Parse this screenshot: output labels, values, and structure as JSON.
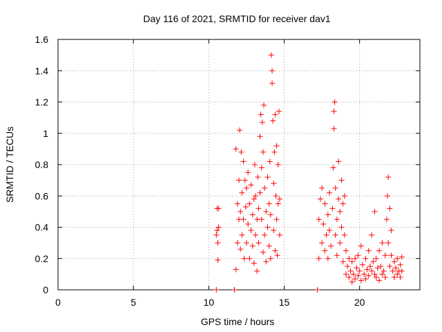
{
  "chart_data": {
    "type": "scatter",
    "title": "Day 116 of 2021, SRMTID for receiver dav1",
    "xlabel": "GPS time / hours",
    "ylabel": "SRMTID / TECUs",
    "xlim": [
      0,
      24
    ],
    "ylim": [
      0,
      1.6
    ],
    "xticks": [
      0,
      5,
      10,
      15,
      20
    ],
    "yticks": [
      0,
      0.2,
      0.4,
      0.6,
      0.8,
      1.0,
      1.2,
      1.4,
      1.6
    ],
    "xtick_labels": [
      "0",
      "5",
      "10",
      "15",
      "20"
    ],
    "ytick_labels": [
      "0",
      "0.2",
      "0.4",
      "0.6",
      "0.8",
      "1",
      "1.2",
      "1.4",
      "1.6"
    ],
    "grid": true,
    "marker": "+",
    "color": "#ff0000",
    "series": [
      {
        "name": "SRMTID",
        "points": [
          [
            10.5,
            0.0
          ],
          [
            10.5,
            0.35
          ],
          [
            10.55,
            0.38
          ],
          [
            10.55,
            0.52
          ],
          [
            10.6,
            0.3
          ],
          [
            10.6,
            0.19
          ],
          [
            10.65,
            0.52
          ],
          [
            10.65,
            0.4
          ],
          [
            11.7,
            0.0
          ],
          [
            11.7,
            0.0
          ],
          [
            11.8,
            0.13
          ],
          [
            11.8,
            0.9
          ],
          [
            11.9,
            0.3
          ],
          [
            11.9,
            0.55
          ],
          [
            12.0,
            0.45
          ],
          [
            12.0,
            0.7
          ],
          [
            12.05,
            1.02
          ],
          [
            12.1,
            0.26
          ],
          [
            12.1,
            0.5
          ],
          [
            12.15,
            0.88
          ],
          [
            12.2,
            0.35
          ],
          [
            12.2,
            0.62
          ],
          [
            12.3,
            0.45
          ],
          [
            12.3,
            0.82
          ],
          [
            12.35,
            0.2
          ],
          [
            12.4,
            0.7
          ],
          [
            12.45,
            0.53
          ],
          [
            12.5,
            0.3
          ],
          [
            12.5,
            0.65
          ],
          [
            12.6,
            0.42
          ],
          [
            12.6,
            0.75
          ],
          [
            12.7,
            0.2
          ],
          [
            12.7,
            0.55
          ],
          [
            12.8,
            0.38
          ],
          [
            12.8,
            0.67
          ],
          [
            12.9,
            0.28
          ],
          [
            12.9,
            0.48
          ],
          [
            13.0,
            0.17
          ],
          [
            13.0,
            0.58
          ],
          [
            13.05,
            0.8
          ],
          [
            13.1,
            0.35
          ],
          [
            13.1,
            0.6
          ],
          [
            13.2,
            0.12
          ],
          [
            13.2,
            0.45
          ],
          [
            13.25,
            0.72
          ],
          [
            13.3,
            0.3
          ],
          [
            13.3,
            0.52
          ],
          [
            13.4,
            0.98
          ],
          [
            13.4,
            0.62
          ],
          [
            13.45,
            1.12
          ],
          [
            13.5,
            0.45
          ],
          [
            13.5,
            0.78
          ],
          [
            13.55,
            1.07
          ],
          [
            13.6,
            0.24
          ],
          [
            13.6,
            0.88
          ],
          [
            13.65,
            1.18
          ],
          [
            13.7,
            0.35
          ],
          [
            13.7,
            0.65
          ],
          [
            13.8,
            0.18
          ],
          [
            13.8,
            0.5
          ],
          [
            13.9,
            0.4
          ],
          [
            13.9,
            0.72
          ],
          [
            14.0,
            0.28
          ],
          [
            14.0,
            0.55
          ],
          [
            14.05,
            0.82
          ],
          [
            14.1,
            0.2
          ],
          [
            14.1,
            0.48
          ],
          [
            14.15,
            1.5
          ],
          [
            14.2,
            1.4
          ],
          [
            14.2,
            1.32
          ],
          [
            14.25,
            1.08
          ],
          [
            14.3,
            0.38
          ],
          [
            14.3,
            0.68
          ],
          [
            14.35,
            0.88
          ],
          [
            14.4,
            1.12
          ],
          [
            14.4,
            0.25
          ],
          [
            14.45,
            0.6
          ],
          [
            14.5,
            0.45
          ],
          [
            14.5,
            0.92
          ],
          [
            14.55,
            0.22
          ],
          [
            14.6,
            0.55
          ],
          [
            14.6,
            0.8
          ],
          [
            14.65,
            1.14
          ],
          [
            14.7,
            0.35
          ],
          [
            14.7,
            0.58
          ],
          [
            17.2,
            0.0
          ],
          [
            17.3,
            0.2
          ],
          [
            17.3,
            0.45
          ],
          [
            17.4,
            0.58
          ],
          [
            17.5,
            0.3
          ],
          [
            17.5,
            0.65
          ],
          [
            17.6,
            0.42
          ],
          [
            17.7,
            0.25
          ],
          [
            17.7,
            0.55
          ],
          [
            17.8,
            0.35
          ],
          [
            17.9,
            0.48
          ],
          [
            17.9,
            0.2
          ],
          [
            18.0,
            0.38
          ],
          [
            18.0,
            0.62
          ],
          [
            18.1,
            0.28
          ],
          [
            18.2,
            0.52
          ],
          [
            18.25,
            0.78
          ],
          [
            18.3,
            1.03
          ],
          [
            18.3,
            1.14
          ],
          [
            18.35,
            1.2
          ],
          [
            18.4,
            0.35
          ],
          [
            18.4,
            0.65
          ],
          [
            18.5,
            0.45
          ],
          [
            18.5,
            0.22
          ],
          [
            18.6,
            0.58
          ],
          [
            18.6,
            0.82
          ],
          [
            18.7,
            0.3
          ],
          [
            18.7,
            0.5
          ],
          [
            18.8,
            0.4
          ],
          [
            18.8,
            0.7
          ],
          [
            18.9,
            0.18
          ],
          [
            18.9,
            0.55
          ],
          [
            19.0,
            0.35
          ],
          [
            19.0,
            0.6
          ],
          [
            19.1,
            0.1
          ],
          [
            19.1,
            0.25
          ],
          [
            19.2,
            0.15
          ],
          [
            19.3,
            0.08
          ],
          [
            19.3,
            0.2
          ],
          [
            19.4,
            0.12
          ],
          [
            19.5,
            0.05
          ],
          [
            19.5,
            0.18
          ],
          [
            19.6,
            0.1
          ],
          [
            19.7,
            0.2
          ],
          [
            19.7,
            0.07
          ],
          [
            19.8,
            0.14
          ],
          [
            19.9,
            0.22
          ],
          [
            19.9,
            0.09
          ],
          [
            20.0,
            0.12
          ],
          [
            20.1,
            0.28
          ],
          [
            20.1,
            0.06
          ],
          [
            20.2,
            0.16
          ],
          [
            20.3,
            0.1
          ],
          [
            20.4,
            0.2
          ],
          [
            20.4,
            0.07
          ],
          [
            20.5,
            0.13
          ],
          [
            20.6,
            0.25
          ],
          [
            20.6,
            0.09
          ],
          [
            20.7,
            0.15
          ],
          [
            20.8,
            0.12
          ],
          [
            20.8,
            0.35
          ],
          [
            20.9,
            0.18
          ],
          [
            21.0,
            0.1
          ],
          [
            21.0,
            0.5
          ],
          [
            21.1,
            0.2
          ],
          [
            21.1,
            0.08
          ],
          [
            21.2,
            0.14
          ],
          [
            21.3,
            0.25
          ],
          [
            21.3,
            0.06
          ],
          [
            21.4,
            0.15
          ],
          [
            21.5,
            0.3
          ],
          [
            21.5,
            0.1
          ],
          [
            21.6,
            0.12
          ],
          [
            21.7,
            0.22
          ],
          [
            21.7,
            0.08
          ],
          [
            21.8,
            0.45
          ],
          [
            21.85,
            0.6
          ],
          [
            21.9,
            0.72
          ],
          [
            21.9,
            0.3
          ],
          [
            22.0,
            0.52
          ],
          [
            22.0,
            0.15
          ],
          [
            22.1,
            0.38
          ],
          [
            22.1,
            0.22
          ],
          [
            22.2,
            0.12
          ],
          [
            22.3,
            0.18
          ],
          [
            22.3,
            0.08
          ],
          [
            22.4,
            0.14
          ],
          [
            22.5,
            0.1
          ],
          [
            22.5,
            0.2
          ],
          [
            22.6,
            0.12
          ],
          [
            22.7,
            0.16
          ],
          [
            22.7,
            0.08
          ],
          [
            22.8,
            0.21
          ],
          [
            22.8,
            0.12
          ]
        ]
      }
    ]
  }
}
